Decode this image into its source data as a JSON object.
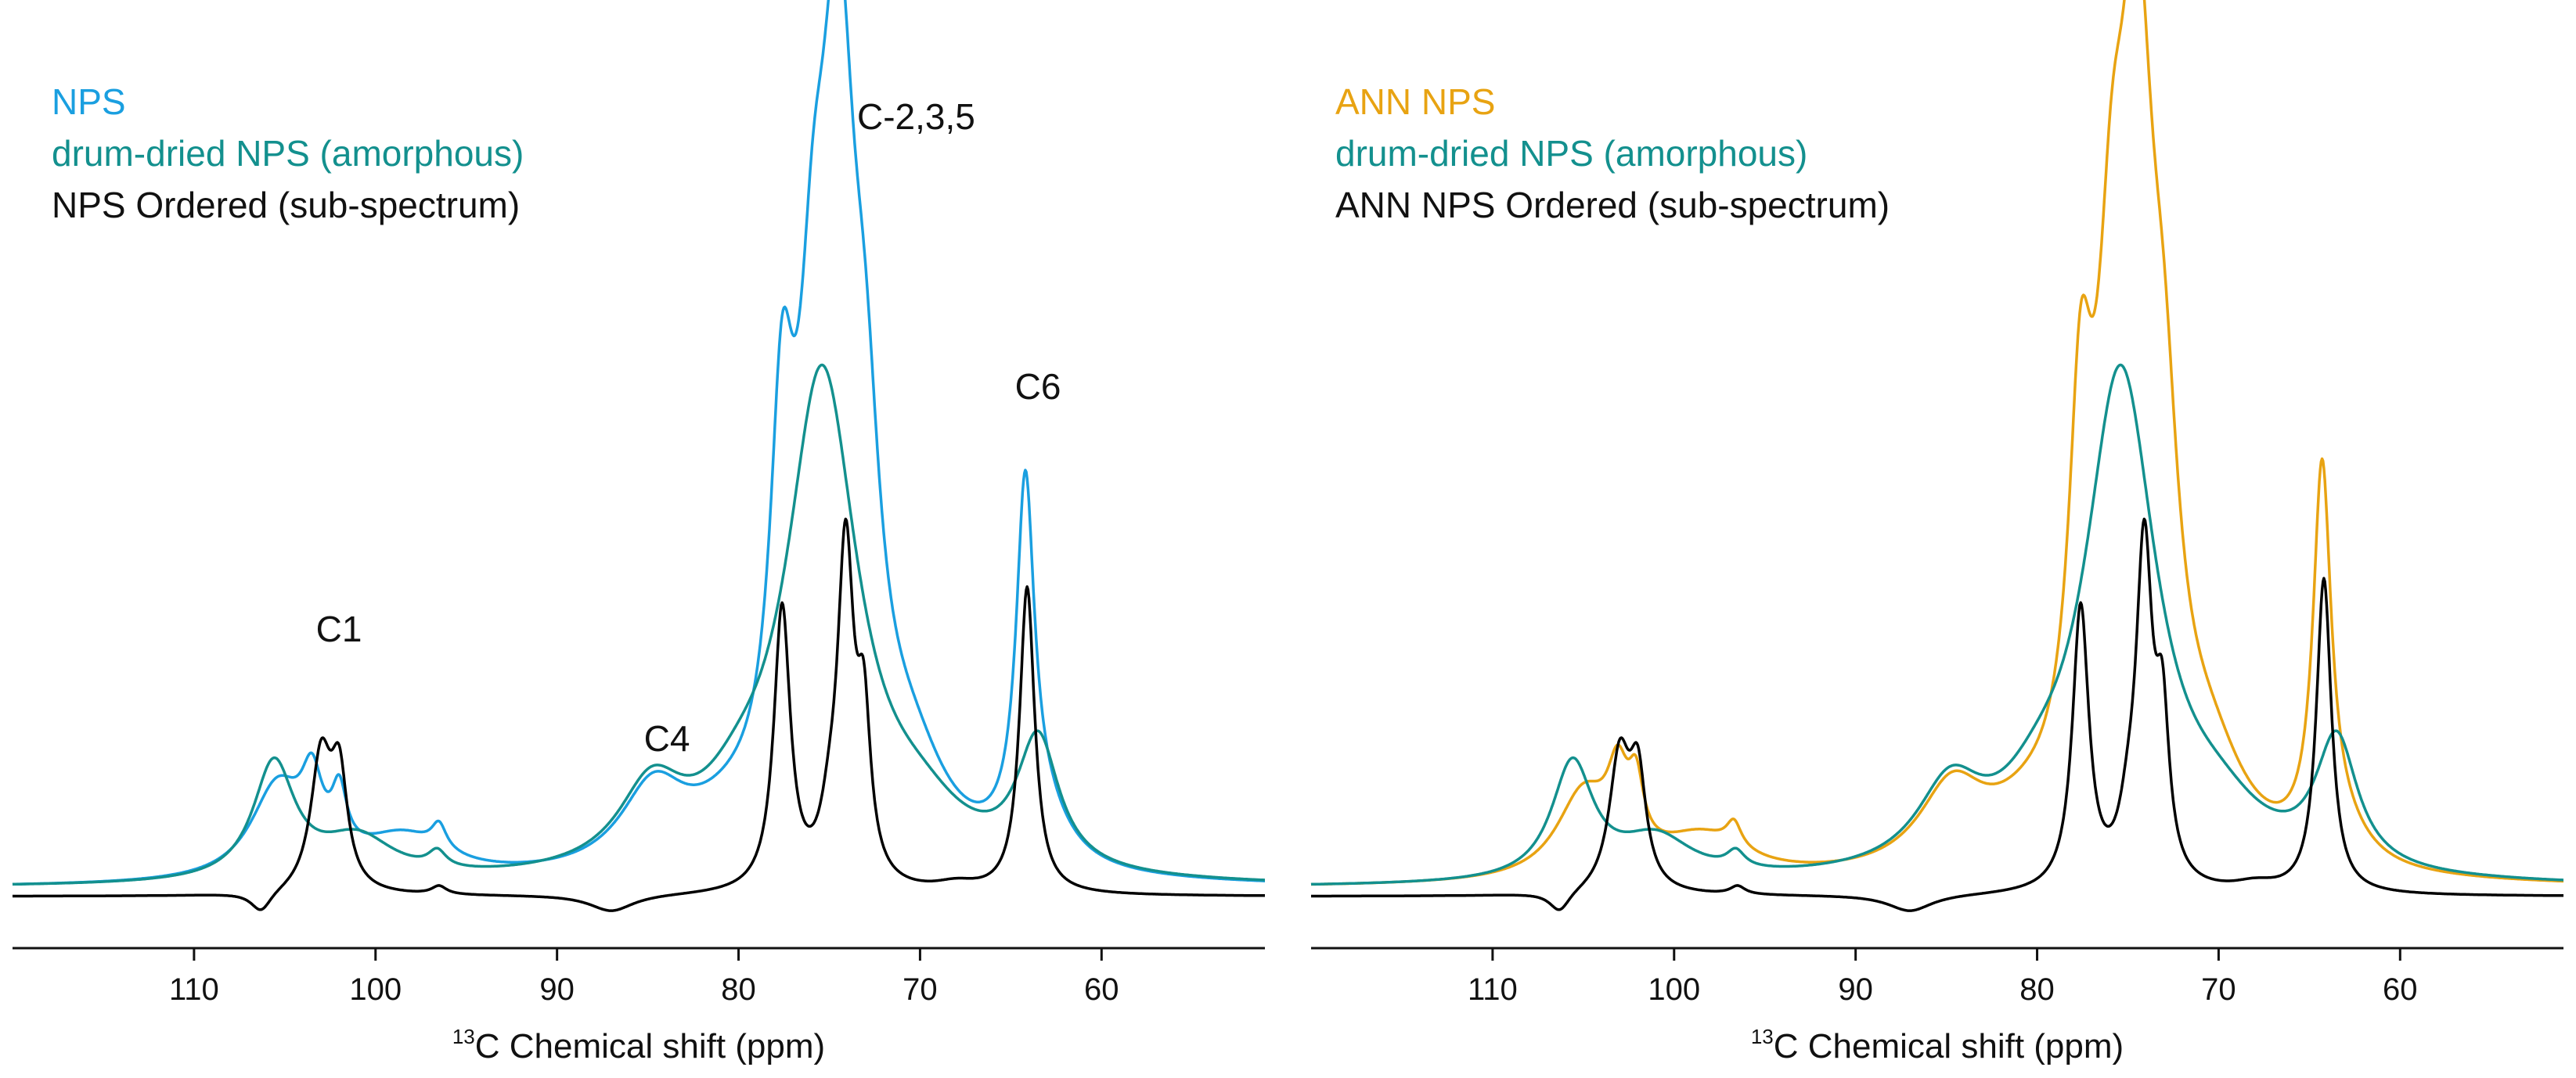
{
  "chart_data": [
    {
      "type": "line",
      "panel": "left",
      "title": "",
      "xlabel": {
        "sup": "13",
        "main": "C Chemical shift (ppm)"
      },
      "ylabel": "",
      "x_reversed": true,
      "xlim": [
        120,
        51
      ],
      "xticks": [
        110,
        100,
        90,
        80,
        70,
        60
      ],
      "grid": false,
      "legend_position": "top-left",
      "series": [
        {
          "name": "NPS",
          "color": "#1a9fe0",
          "baseline": 0.01,
          "peaks": [
            [
              103.5,
              0.085,
              0.7
            ],
            [
              102.0,
              0.07,
              0.5
            ],
            [
              105.4,
              0.11,
              1.8
            ],
            [
              96.5,
              0.03,
              0.5
            ],
            [
              98.5,
              0.05,
              3.0
            ],
            [
              84.7,
              0.095,
              2.2
            ],
            [
              80.5,
              0.04,
              3.0
            ],
            [
              77.6,
              0.42,
              0.8
            ],
            [
              75.9,
              0.4,
              1.0
            ],
            [
              74.5,
              0.85,
              1.2
            ],
            [
              73.0,
              0.3,
              1.0
            ],
            [
              70.5,
              0.1,
              2.5
            ],
            [
              64.2,
              0.42,
              0.6
            ],
            [
              63.3,
              0.06,
              1.8
            ]
          ]
        },
        {
          "name": "drum-dried NPS (amorphous)",
          "color": "#13908e",
          "baseline": 0.01,
          "peaks": [
            [
              105.6,
              0.14,
              1.4
            ],
            [
              101.0,
              0.05,
              2.5
            ],
            [
              96.6,
              0.02,
              0.6
            ],
            [
              84.8,
              0.095,
              2.2
            ],
            [
              80.0,
              0.05,
              2.5
            ],
            [
              75.4,
              0.6,
              2.4
            ],
            [
              70.0,
              0.05,
              3.0
            ],
            [
              63.5,
              0.155,
              1.4
            ]
          ]
        },
        {
          "name": "NPS Ordered (sub-spectrum)",
          "color": "#000000",
          "baseline": 0.0,
          "peaks": [
            [
              103.0,
              0.16,
              0.7
            ],
            [
              102.0,
              0.13,
              0.55
            ],
            [
              106.3,
              -0.025,
              0.7
            ],
            [
              96.5,
              0.01,
              0.5
            ],
            [
              87.0,
              -0.02,
              1.5
            ],
            [
              77.6,
              0.34,
              0.55
            ],
            [
              74.1,
              0.4,
              0.55
            ],
            [
              73.1,
              0.18,
              0.45
            ],
            [
              75.0,
              0.05,
              0.6
            ],
            [
              64.1,
              0.37,
              0.5
            ],
            [
              68.0,
              0.01,
              1.5
            ]
          ]
        }
      ],
      "annotations": [
        {
          "text": "C1",
          "x": 102.8
        },
        {
          "text": "C4",
          "x": 84.6
        },
        {
          "text": "C-2,3,5",
          "x": 70.8
        },
        {
          "text": "C6",
          "x": 63.6
        }
      ]
    },
    {
      "type": "line",
      "panel": "right",
      "title": "",
      "xlabel": {
        "sup": "13",
        "main": "C Chemical shift (ppm)"
      },
      "ylabel": "",
      "x_reversed": true,
      "xlim": [
        120,
        51
      ],
      "xticks": [
        110,
        100,
        90,
        80,
        70,
        60
      ],
      "grid": false,
      "legend_position": "top-left",
      "series": [
        {
          "name": "ANN NPS",
          "color": "#e8a312",
          "baseline": 0.01,
          "peaks": [
            [
              103.1,
              0.09,
              0.7
            ],
            [
              102.1,
              0.075,
              0.5
            ],
            [
              105.0,
              0.1,
              1.8
            ],
            [
              96.7,
              0.03,
              0.5
            ],
            [
              98.5,
              0.05,
              3.0
            ],
            [
              84.7,
              0.095,
              2.2
            ],
            [
              80.5,
              0.04,
              3.0
            ],
            [
              77.6,
              0.42,
              0.8
            ],
            [
              75.9,
              0.45,
              1.0
            ],
            [
              74.5,
              0.85,
              1.2
            ],
            [
              73.0,
              0.3,
              1.0
            ],
            [
              70.5,
              0.1,
              2.5
            ],
            [
              64.3,
              0.45,
              0.6
            ],
            [
              63.3,
              0.04,
              1.8
            ]
          ]
        },
        {
          "name": "drum-dried NPS (amorphous)",
          "color": "#13908e",
          "baseline": 0.01,
          "peaks": [
            [
              105.6,
              0.14,
              1.4
            ],
            [
              101.0,
              0.05,
              2.5
            ],
            [
              96.6,
              0.02,
              0.6
            ],
            [
              84.8,
              0.095,
              2.2
            ],
            [
              80.0,
              0.05,
              2.5
            ],
            [
              75.4,
              0.6,
              2.4
            ],
            [
              70.0,
              0.05,
              3.0
            ],
            [
              63.5,
              0.155,
              1.4
            ]
          ]
        },
        {
          "name": "ANN NPS Ordered (sub-spectrum)",
          "color": "#000000",
          "baseline": 0.0,
          "peaks": [
            [
              103.0,
              0.16,
              0.7
            ],
            [
              102.0,
              0.13,
              0.55
            ],
            [
              106.3,
              -0.025,
              0.7
            ],
            [
              96.5,
              0.01,
              0.5
            ],
            [
              87.0,
              -0.02,
              1.5
            ],
            [
              77.6,
              0.34,
              0.55
            ],
            [
              74.1,
              0.4,
              0.55
            ],
            [
              73.1,
              0.18,
              0.45
            ],
            [
              75.0,
              0.05,
              0.6
            ],
            [
              64.2,
              0.38,
              0.5
            ],
            [
              68.0,
              0.01,
              1.5
            ]
          ]
        }
      ],
      "annotations": []
    }
  ]
}
